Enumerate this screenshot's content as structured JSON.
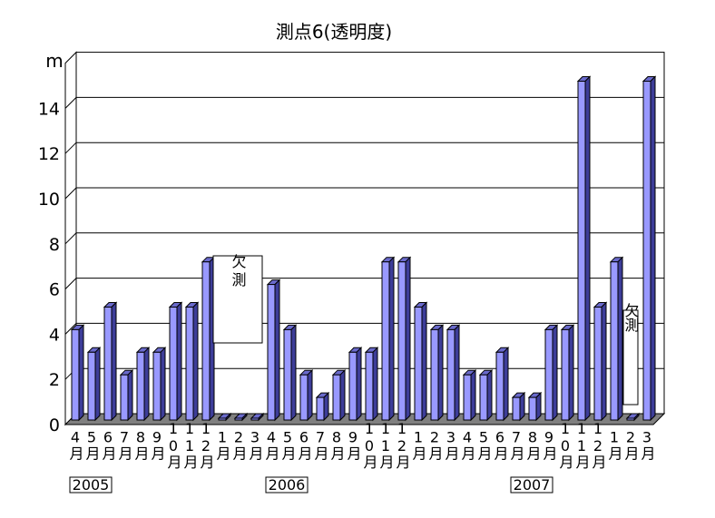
{
  "chart_data": {
    "type": "bar",
    "title": "測点6(透明度)",
    "ylabel": "m",
    "xlabel": "",
    "ylim": [
      0,
      16
    ],
    "yticks": [
      0,
      2,
      4,
      6,
      8,
      10,
      12,
      14
    ],
    "grid": true,
    "legend": "none",
    "categories": [
      "4月",
      "5月",
      "6月",
      "7月",
      "8月",
      "9月",
      "10月",
      "11月",
      "12月",
      "1月",
      "2月",
      "3月",
      "4月",
      "5月",
      "6月",
      "7月",
      "8月",
      "9月",
      "10月",
      "11月",
      "12月",
      "1月",
      "2月",
      "3月",
      "4月",
      "5月",
      "6月",
      "7月",
      "8月",
      "9月",
      "10月",
      "11月",
      "12月",
      "1月",
      "2月",
      "3月"
    ],
    "values": [
      4,
      3,
      5,
      2,
      3,
      3,
      5,
      5,
      7,
      0,
      0,
      0,
      6,
      4,
      2,
      1,
      2,
      3,
      3,
      7,
      7,
      5,
      4,
      4,
      2,
      2,
      3,
      1,
      1,
      4,
      4,
      15,
      5,
      7,
      0,
      15
    ],
    "year_labels": [
      {
        "text": "2005",
        "index": 0
      },
      {
        "text": "2006",
        "index": 12
      },
      {
        "text": "2007",
        "index": 27
      }
    ],
    "annotations": [
      {
        "text": "欠測",
        "index": 10
      },
      {
        "text": "欠測",
        "index": 34
      }
    ],
    "colors": {
      "bar_front": "#9999ff",
      "bar_side": "#3d3d99",
      "bar_top": "#6a6acc",
      "floor": "#808080",
      "wall": "#ffffff",
      "outline": "#000000"
    }
  }
}
